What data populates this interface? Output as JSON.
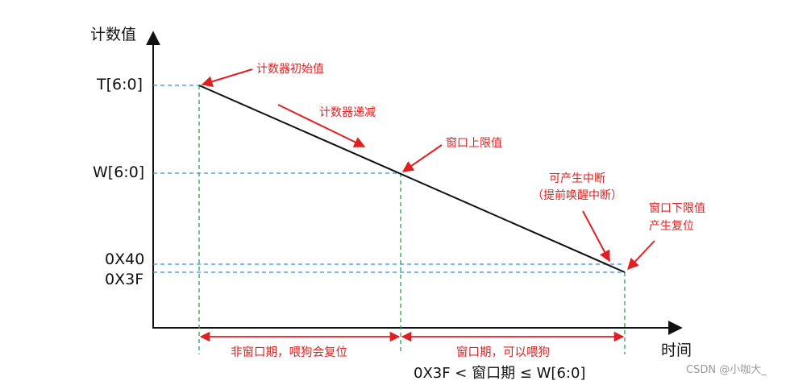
{
  "axes": {
    "y_title": "计数值",
    "x_title": "时间"
  },
  "y_ticks": {
    "t": "T[6:0]",
    "w": "W[6:0]",
    "h40": "0X40",
    "h3f": "0X3F"
  },
  "annotations": {
    "initial_value": "计数器初始值",
    "decrement": "计数器递减",
    "window_upper": "窗口上限值",
    "interrupt_line1": "可产生中断",
    "interrupt_line2": "（提前唤醒中断）",
    "window_lower_line1": "窗口下限值",
    "window_lower_line2": "产生复位"
  },
  "periods": {
    "non_window": "非窗口期，喂狗会复位",
    "window": "窗口期，可以喂狗"
  },
  "formula": "0X3F  <  窗口期  ≤  W[6:0]",
  "watermark": "CSDN @小咖大_",
  "colors": {
    "axis": "#111111",
    "guide_blue": "#2f8fe0",
    "guide_green": "#2aa052",
    "annotation_red": "#e02020"
  }
}
